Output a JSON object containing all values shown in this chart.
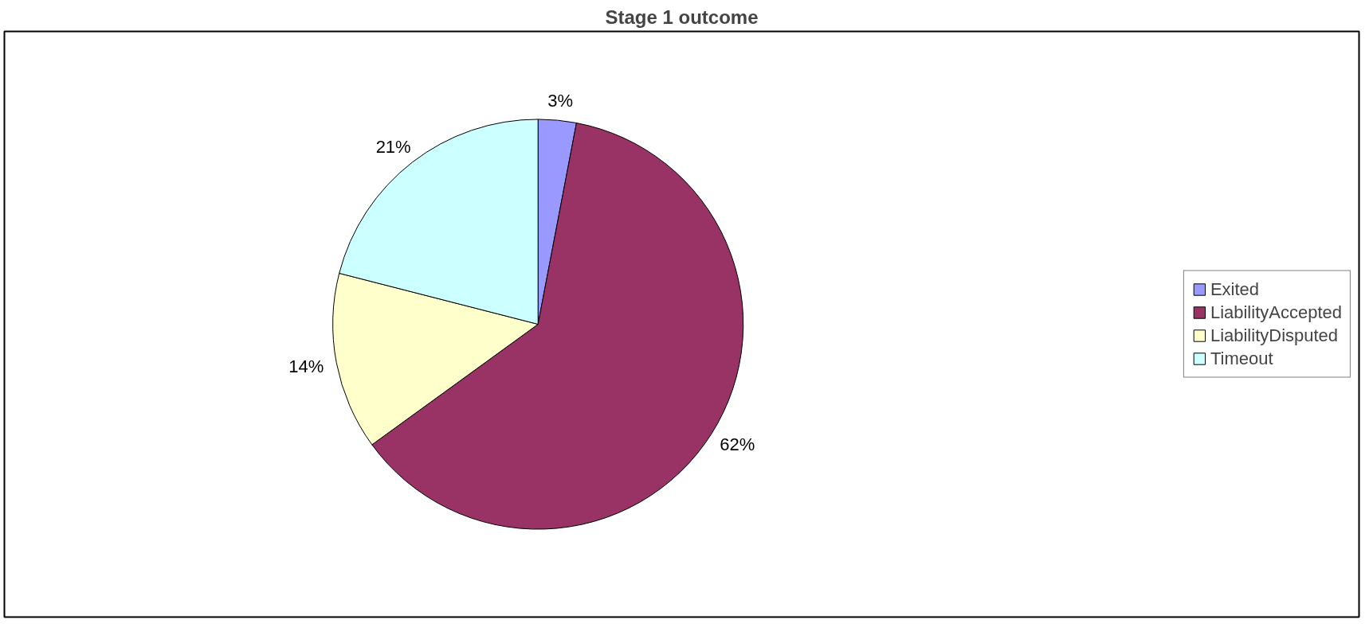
{
  "chart_data": {
    "type": "pie",
    "title": "Stage 1 outcome",
    "categories": [
      "Exited",
      "LiabilityAccepted",
      "LiabilityDisputed",
      "Timeout"
    ],
    "values": [
      3,
      62,
      14,
      21
    ],
    "colors": [
      "#9999ff",
      "#993366",
      "#ffffcc",
      "#ccffff"
    ],
    "value_labels": [
      "3%",
      "62%",
      "14%",
      "21%"
    ],
    "legend": "right"
  }
}
